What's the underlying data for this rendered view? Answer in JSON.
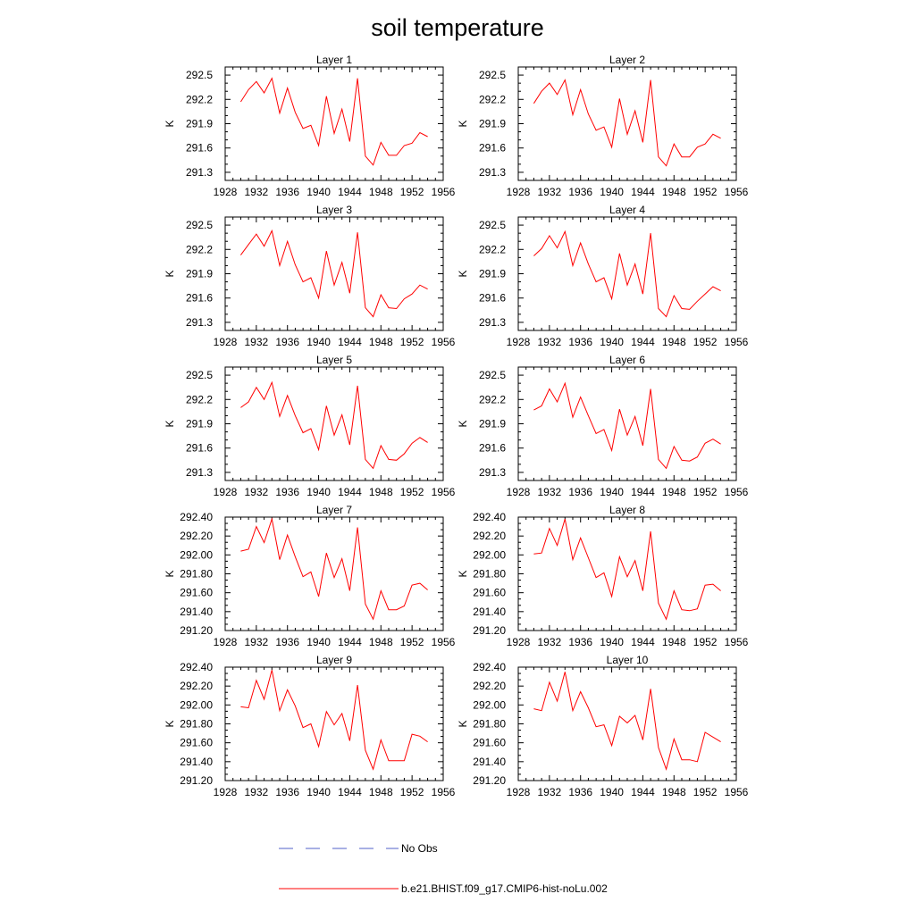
{
  "title": "soil temperature",
  "colors": {
    "model": "#ff0000",
    "obs": "#5060c8",
    "frame": "#000000"
  },
  "legend": {
    "position": "bottom",
    "entries": [
      {
        "label": "No Obs",
        "style": "dashed",
        "color": "#5060c8"
      },
      {
        "label": "b.e21.BHIST.f09_g17.CMIP6-hist-noLu.002",
        "style": "solid",
        "color": "#ff0000"
      }
    ]
  },
  "chart_data": [
    {
      "type": "line",
      "title": "Layer 1",
      "xlabel": "",
      "ylabel": "K",
      "xlim": [
        1928,
        1956
      ],
      "ylim": [
        291.2,
        292.6
      ],
      "xticks": [
        "1928",
        "1932",
        "1936",
        "1940",
        "1944",
        "1948",
        "1952",
        "1956"
      ],
      "yticks": [
        "291.3",
        "291.6",
        "291.9",
        "292.2",
        "292.5"
      ],
      "x": [
        1930,
        1931,
        1932,
        1933,
        1934,
        1935,
        1936,
        1937,
        1938,
        1939,
        1940,
        1941,
        1942,
        1943,
        1944,
        1945,
        1946,
        1947,
        1948,
        1949,
        1950,
        1951,
        1952,
        1953,
        1954
      ],
      "series": [
        {
          "name": "b.e21.BHIST.f09_g17.CMIP6-hist-noLu.002",
          "values": [
            292.17,
            292.32,
            292.42,
            292.28,
            292.46,
            292.03,
            292.34,
            292.04,
            291.84,
            291.88,
            291.63,
            292.24,
            291.78,
            292.08,
            291.68,
            292.46,
            291.5,
            291.39,
            291.67,
            291.51,
            291.51,
            291.63,
            291.66,
            291.79,
            291.74
          ]
        }
      ]
    },
    {
      "type": "line",
      "title": "Layer 2",
      "xlabel": "",
      "ylabel": "K",
      "xlim": [
        1928,
        1956
      ],
      "ylim": [
        291.2,
        292.6
      ],
      "xticks": [
        "1928",
        "1932",
        "1936",
        "1940",
        "1944",
        "1948",
        "1952",
        "1956"
      ],
      "yticks": [
        "291.3",
        "291.6",
        "291.9",
        "292.2",
        "292.5"
      ],
      "x": [
        1930,
        1931,
        1932,
        1933,
        1934,
        1935,
        1936,
        1937,
        1938,
        1939,
        1940,
        1941,
        1942,
        1943,
        1944,
        1945,
        1946,
        1947,
        1948,
        1949,
        1950,
        1951,
        1952,
        1953,
        1954
      ],
      "series": [
        {
          "name": "b.e21.BHIST.f09_g17.CMIP6-hist-noLu.002",
          "values": [
            292.15,
            292.3,
            292.4,
            292.26,
            292.44,
            292.01,
            292.32,
            292.02,
            291.82,
            291.86,
            291.61,
            292.21,
            291.77,
            292.06,
            291.67,
            292.44,
            291.49,
            291.38,
            291.65,
            291.49,
            291.49,
            291.61,
            291.65,
            291.77,
            291.72
          ]
        }
      ]
    },
    {
      "type": "line",
      "title": "Layer 3",
      "xlabel": "",
      "ylabel": "K",
      "xlim": [
        1928,
        1956
      ],
      "ylim": [
        291.2,
        292.6
      ],
      "xticks": [
        "1928",
        "1932",
        "1936",
        "1940",
        "1944",
        "1948",
        "1952",
        "1956"
      ],
      "yticks": [
        "291.3",
        "291.6",
        "291.9",
        "292.2",
        "292.5"
      ],
      "x": [
        1930,
        1931,
        1932,
        1933,
        1934,
        1935,
        1936,
        1937,
        1938,
        1939,
        1940,
        1941,
        1942,
        1943,
        1944,
        1945,
        1946,
        1947,
        1948,
        1949,
        1950,
        1951,
        1952,
        1953,
        1954
      ],
      "series": [
        {
          "name": "b.e21.BHIST.f09_g17.CMIP6-hist-noLu.002",
          "values": [
            292.13,
            292.26,
            292.39,
            292.24,
            292.43,
            292.0,
            292.3,
            292.01,
            291.8,
            291.85,
            291.6,
            292.18,
            291.76,
            292.04,
            291.66,
            292.41,
            291.48,
            291.37,
            291.64,
            291.48,
            291.47,
            291.59,
            291.65,
            291.76,
            291.71
          ]
        }
      ]
    },
    {
      "type": "line",
      "title": "Layer 4",
      "xlabel": "",
      "ylabel": "K",
      "xlim": [
        1928,
        1956
      ],
      "ylim": [
        291.2,
        292.6
      ],
      "xticks": [
        "1928",
        "1932",
        "1936",
        "1940",
        "1944",
        "1948",
        "1952",
        "1956"
      ],
      "yticks": [
        "291.3",
        "291.6",
        "291.9",
        "292.2",
        "292.5"
      ],
      "x": [
        1930,
        1931,
        1932,
        1933,
        1934,
        1935,
        1936,
        1937,
        1938,
        1939,
        1940,
        1941,
        1942,
        1943,
        1944,
        1945,
        1946,
        1947,
        1948,
        1949,
        1950,
        1951,
        1952,
        1953,
        1954
      ],
      "series": [
        {
          "name": "b.e21.BHIST.f09_g17.CMIP6-hist-noLu.002",
          "values": [
            292.12,
            292.21,
            292.37,
            292.22,
            292.42,
            292.0,
            292.28,
            292.02,
            291.8,
            291.85,
            291.59,
            292.15,
            291.76,
            292.02,
            291.65,
            292.4,
            291.47,
            291.37,
            291.63,
            291.47,
            291.46,
            291.56,
            291.65,
            291.74,
            291.69
          ]
        }
      ]
    },
    {
      "type": "line",
      "title": "Layer 5",
      "xlabel": "",
      "ylabel": "K",
      "xlim": [
        1928,
        1956
      ],
      "ylim": [
        291.2,
        292.6
      ],
      "xticks": [
        "1928",
        "1932",
        "1936",
        "1940",
        "1944",
        "1948",
        "1952",
        "1956"
      ],
      "yticks": [
        "291.3",
        "291.6",
        "291.9",
        "292.2",
        "292.5"
      ],
      "x": [
        1930,
        1931,
        1932,
        1933,
        1934,
        1935,
        1936,
        1937,
        1938,
        1939,
        1940,
        1941,
        1942,
        1943,
        1944,
        1945,
        1946,
        1947,
        1948,
        1949,
        1950,
        1951,
        1952,
        1953,
        1954
      ],
      "series": [
        {
          "name": "b.e21.BHIST.f09_g17.CMIP6-hist-noLu.002",
          "values": [
            292.1,
            292.17,
            292.35,
            292.2,
            292.41,
            291.99,
            292.25,
            292.0,
            291.79,
            291.84,
            291.58,
            292.12,
            291.76,
            292.01,
            291.64,
            292.37,
            291.46,
            291.35,
            291.63,
            291.46,
            291.45,
            291.53,
            291.66,
            291.73,
            291.67
          ]
        }
      ]
    },
    {
      "type": "line",
      "title": "Layer 6",
      "xlabel": "",
      "ylabel": "K",
      "xlim": [
        1928,
        1956
      ],
      "ylim": [
        291.2,
        292.6
      ],
      "xticks": [
        "1928",
        "1932",
        "1936",
        "1940",
        "1944",
        "1948",
        "1952",
        "1956"
      ],
      "yticks": [
        "291.3",
        "291.6",
        "291.9",
        "292.2",
        "292.5"
      ],
      "x": [
        1930,
        1931,
        1932,
        1933,
        1934,
        1935,
        1936,
        1937,
        1938,
        1939,
        1940,
        1941,
        1942,
        1943,
        1944,
        1945,
        1946,
        1947,
        1948,
        1949,
        1950,
        1951,
        1952,
        1953,
        1954
      ],
      "series": [
        {
          "name": "b.e21.BHIST.f09_g17.CMIP6-hist-noLu.002",
          "values": [
            292.07,
            292.12,
            292.33,
            292.17,
            292.4,
            291.98,
            292.23,
            292.0,
            291.78,
            291.83,
            291.57,
            292.08,
            291.76,
            291.99,
            291.63,
            292.33,
            291.46,
            291.35,
            291.62,
            291.45,
            291.44,
            291.49,
            291.66,
            291.71,
            291.65
          ]
        }
      ]
    },
    {
      "type": "line",
      "title": "Layer 7",
      "xlabel": "",
      "ylabel": "K",
      "xlim": [
        1928,
        1956
      ],
      "ylim": [
        291.2,
        292.4
      ],
      "xticks": [
        "1928",
        "1932",
        "1936",
        "1940",
        "1944",
        "1948",
        "1952",
        "1956"
      ],
      "yticks": [
        "291.20",
        "291.40",
        "291.60",
        "291.80",
        "292.00",
        "292.20",
        "292.40"
      ],
      "x": [
        1930,
        1931,
        1932,
        1933,
        1934,
        1935,
        1936,
        1937,
        1938,
        1939,
        1940,
        1941,
        1942,
        1943,
        1944,
        1945,
        1946,
        1947,
        1948,
        1949,
        1950,
        1951,
        1952,
        1953,
        1954
      ],
      "series": [
        {
          "name": "b.e21.BHIST.f09_g17.CMIP6-hist-noLu.002",
          "values": [
            292.04,
            292.06,
            292.3,
            292.13,
            292.38,
            291.95,
            292.21,
            291.98,
            291.77,
            291.82,
            291.56,
            292.02,
            291.76,
            291.96,
            291.62,
            292.29,
            291.48,
            291.32,
            291.62,
            291.42,
            291.42,
            291.46,
            291.68,
            291.7,
            291.63
          ]
        }
      ]
    },
    {
      "type": "line",
      "title": "Layer 8",
      "xlabel": "",
      "ylabel": "K",
      "xlim": [
        1928,
        1956
      ],
      "ylim": [
        291.2,
        292.4
      ],
      "xticks": [
        "1928",
        "1932",
        "1936",
        "1940",
        "1944",
        "1948",
        "1952",
        "1956"
      ],
      "yticks": [
        "291.20",
        "291.40",
        "291.60",
        "291.80",
        "292.00",
        "292.20",
        "292.40"
      ],
      "x": [
        1930,
        1931,
        1932,
        1933,
        1934,
        1935,
        1936,
        1937,
        1938,
        1939,
        1940,
        1941,
        1942,
        1943,
        1944,
        1945,
        1946,
        1947,
        1948,
        1949,
        1950,
        1951,
        1952,
        1953,
        1954
      ],
      "series": [
        {
          "name": "b.e21.BHIST.f09_g17.CMIP6-hist-noLu.002",
          "values": [
            292.01,
            292.02,
            292.28,
            292.1,
            292.38,
            291.95,
            292.18,
            291.97,
            291.76,
            291.81,
            291.56,
            291.98,
            291.77,
            291.94,
            291.62,
            292.25,
            291.49,
            291.32,
            291.62,
            291.42,
            291.41,
            291.43,
            291.68,
            291.69,
            291.62
          ]
        }
      ]
    },
    {
      "type": "line",
      "title": "Layer 9",
      "xlabel": "",
      "ylabel": "K",
      "xlim": [
        1928,
        1956
      ],
      "ylim": [
        291.2,
        292.4
      ],
      "xticks": [
        "1928",
        "1932",
        "1936",
        "1940",
        "1944",
        "1948",
        "1952",
        "1956"
      ],
      "yticks": [
        "291.20",
        "291.40",
        "291.60",
        "291.80",
        "292.00",
        "292.20",
        "292.40"
      ],
      "x": [
        1930,
        1931,
        1932,
        1933,
        1934,
        1935,
        1936,
        1937,
        1938,
        1939,
        1940,
        1941,
        1942,
        1943,
        1944,
        1945,
        1946,
        1947,
        1948,
        1949,
        1950,
        1951,
        1952,
        1953,
        1954
      ],
      "series": [
        {
          "name": "b.e21.BHIST.f09_g17.CMIP6-hist-noLu.002",
          "values": [
            291.98,
            291.97,
            292.26,
            292.06,
            292.37,
            291.94,
            292.16,
            291.99,
            291.76,
            291.8,
            291.56,
            291.93,
            291.79,
            291.91,
            291.62,
            292.21,
            291.52,
            291.32,
            291.63,
            291.41,
            291.41,
            291.41,
            291.69,
            291.67,
            291.61
          ]
        }
      ]
    },
    {
      "type": "line",
      "title": "Layer 10",
      "xlabel": "",
      "ylabel": "K",
      "xlim": [
        1928,
        1956
      ],
      "ylim": [
        291.2,
        292.4
      ],
      "xticks": [
        "1928",
        "1932",
        "1936",
        "1940",
        "1944",
        "1948",
        "1952",
        "1956"
      ],
      "yticks": [
        "291.20",
        "291.40",
        "291.60",
        "291.80",
        "292.00",
        "292.20",
        "292.40"
      ],
      "x": [
        1930,
        1931,
        1932,
        1933,
        1934,
        1935,
        1936,
        1937,
        1938,
        1939,
        1940,
        1941,
        1942,
        1943,
        1944,
        1945,
        1946,
        1947,
        1948,
        1949,
        1950,
        1951,
        1952,
        1953,
        1954
      ],
      "series": [
        {
          "name": "b.e21.BHIST.f09_g17.CMIP6-hist-noLu.002",
          "values": [
            291.96,
            291.94,
            292.24,
            292.04,
            292.35,
            291.94,
            292.14,
            291.97,
            291.77,
            291.79,
            291.57,
            291.88,
            291.81,
            291.89,
            291.63,
            292.17,
            291.55,
            291.32,
            291.64,
            291.42,
            291.42,
            291.4,
            291.71,
            291.66,
            291.61
          ]
        }
      ]
    }
  ]
}
